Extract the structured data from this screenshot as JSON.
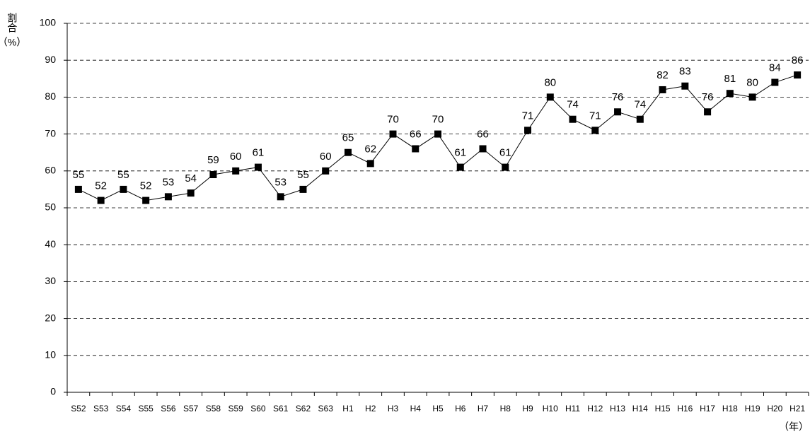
{
  "chart_data": {
    "type": "line",
    "ylabel": "割合",
    "yunit": "（%）",
    "xunit": "（年）",
    "categories": [
      "S52",
      "S53",
      "S54",
      "S55",
      "S56",
      "S57",
      "S58",
      "S59",
      "S60",
      "S61",
      "S62",
      "S63",
      "H1",
      "H2",
      "H3",
      "H4",
      "H5",
      "H6",
      "H7",
      "H8",
      "H9",
      "H10",
      "H11",
      "H12",
      "H13",
      "H14",
      "H15",
      "H16",
      "H17",
      "H18",
      "H19",
      "H20",
      "H21"
    ],
    "values": [
      55,
      52,
      55,
      52,
      53,
      54,
      59,
      60,
      61,
      53,
      55,
      60,
      65,
      62,
      70,
      66,
      70,
      61,
      66,
      61,
      71,
      80,
      74,
      71,
      76,
      74,
      82,
      83,
      76,
      81,
      80,
      84,
      86
    ],
    "color": "#000000",
    "ylim": [
      0,
      100
    ],
    "yticks": [
      0,
      10,
      20,
      30,
      40,
      50,
      60,
      70,
      80,
      90,
      100
    ],
    "grid": true
  }
}
